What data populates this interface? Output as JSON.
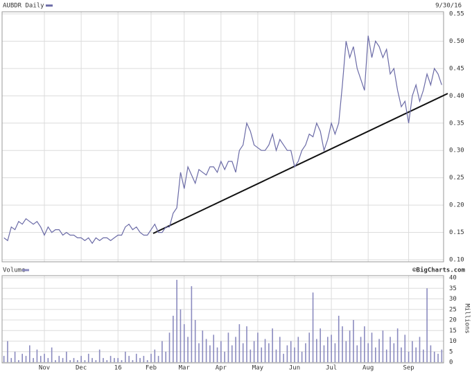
{
  "chart_data": [
    {
      "type": "line",
      "title": "AUBDR Daily",
      "date_label": "9/30/16",
      "color": "#6a6aa6",
      "values": [
        0.14,
        0.135,
        0.16,
        0.155,
        0.17,
        0.165,
        0.175,
        0.17,
        0.165,
        0.17,
        0.16,
        0.145,
        0.16,
        0.15,
        0.155,
        0.155,
        0.145,
        0.15,
        0.145,
        0.145,
        0.14,
        0.14,
        0.135,
        0.14,
        0.13,
        0.14,
        0.135,
        0.14,
        0.14,
        0.135,
        0.14,
        0.145,
        0.145,
        0.16,
        0.165,
        0.155,
        0.16,
        0.15,
        0.145,
        0.145,
        0.155,
        0.165,
        0.15,
        0.15,
        0.16,
        0.16,
        0.185,
        0.195,
        0.26,
        0.23,
        0.27,
        0.255,
        0.24,
        0.265,
        0.26,
        0.255,
        0.27,
        0.27,
        0.26,
        0.28,
        0.265,
        0.28,
        0.28,
        0.26,
        0.3,
        0.31,
        0.35,
        0.335,
        0.31,
        0.305,
        0.3,
        0.3,
        0.31,
        0.33,
        0.3,
        0.32,
        0.31,
        0.3,
        0.3,
        0.27,
        0.28,
        0.3,
        0.31,
        0.33,
        0.325,
        0.35,
        0.335,
        0.3,
        0.32,
        0.35,
        0.33,
        0.35,
        0.42,
        0.5,
        0.47,
        0.49,
        0.45,
        0.43,
        0.41,
        0.51,
        0.47,
        0.5,
        0.49,
        0.47,
        0.485,
        0.44,
        0.45,
        0.41,
        0.38,
        0.39,
        0.35,
        0.4,
        0.42,
        0.39,
        0.41,
        0.44,
        0.42,
        0.45,
        0.44,
        0.42
      ],
      "ylim": [
        0.1,
        0.55
      ],
      "yticks": [
        {
          "value": 0.1,
          "label": "0.10"
        },
        0.15,
        {
          "value": 0.2,
          "label": "0.20"
        },
        0.25,
        {
          "value": 0.3,
          "label": "0.30"
        },
        0.35,
        {
          "value": 0.4,
          "label": "0.40"
        },
        0.45,
        {
          "value": 0.5,
          "label": "0.50"
        },
        0.55
      ],
      "grid": true
    },
    {
      "type": "bar",
      "title": "Volume",
      "y_axis_label": "Millions",
      "source": "©BigCharts.com",
      "color": "#8a8abf",
      "categories": [
        null,
        null,
        null,
        null,
        null,
        null,
        null,
        null,
        null,
        null,
        null,
        "Nov",
        null,
        null,
        null,
        null,
        null,
        null,
        null,
        null,
        null,
        "Dec",
        null,
        null,
        null,
        null,
        null,
        null,
        null,
        null,
        null,
        "16",
        null,
        null,
        null,
        null,
        null,
        null,
        null,
        null,
        "Feb",
        null,
        null,
        null,
        null,
        null,
        null,
        null,
        null,
        "Mar",
        null,
        null,
        null,
        null,
        null,
        null,
        null,
        null,
        null,
        "Apr",
        null,
        null,
        null,
        null,
        null,
        null,
        null,
        null,
        null,
        "May",
        null,
        null,
        null,
        null,
        null,
        null,
        null,
        null,
        null,
        "Jun",
        null,
        null,
        null,
        null,
        null,
        null,
        null,
        null,
        null,
        "Jul",
        null,
        null,
        null,
        null,
        null,
        null,
        null,
        null,
        null,
        "Aug",
        null,
        null,
        null,
        null,
        null,
        null,
        null,
        null,
        null,
        null,
        "Sep",
        null,
        null,
        null,
        null,
        null,
        null,
        null,
        null,
        null
      ],
      "values": [
        3,
        10,
        2,
        5,
        1,
        4,
        3,
        8,
        2,
        6,
        3,
        4,
        2,
        7,
        1,
        3,
        2,
        5,
        1,
        2,
        1,
        3,
        1,
        4,
        2,
        1,
        6,
        2,
        1,
        3,
        2,
        2,
        1,
        5,
        3,
        1,
        4,
        2,
        3,
        1,
        4,
        6,
        3,
        10,
        5,
        14,
        22,
        39,
        25,
        18,
        12,
        36,
        20,
        9,
        15,
        11,
        8,
        13,
        7,
        10,
        5,
        14,
        8,
        12,
        18,
        9,
        17,
        6,
        10,
        14,
        7,
        11,
        9,
        16,
        6,
        12,
        4,
        8,
        10,
        7,
        12,
        5,
        9,
        14,
        33,
        11,
        16,
        8,
        12,
        13,
        9,
        22,
        17,
        10,
        15,
        20,
        8,
        12,
        17,
        9,
        14,
        7,
        11,
        15,
        6,
        12,
        9,
        16,
        7,
        13,
        5,
        10,
        7,
        12,
        6,
        35,
        8,
        5,
        4,
        6
      ],
      "ylim": [
        0,
        40
      ],
      "yticks": [
        0,
        5,
        10,
        15,
        20,
        25,
        30,
        35,
        40
      ],
      "grid": true
    }
  ]
}
